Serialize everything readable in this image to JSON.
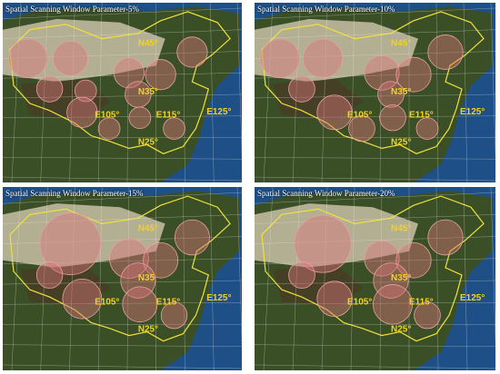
{
  "colors": {
    "sea": "#1e4f86",
    "sea_light": "#2d6aa5",
    "land_desert": "#c9bfa7",
    "land_green": "#3a4f26",
    "land_dark": "#4a3a25",
    "boundary": "#f0e23a",
    "circle_fill": "#d8747a",
    "circle_stroke": "#e8a0a5",
    "label": "#f3d21c",
    "grid": "#e8e8e8"
  },
  "panels": [
    {
      "title": "Spatial Scanning  Window Parameter-5%",
      "labels": {
        "n45": "N45°",
        "n35": "N35°",
        "n25": "N25°",
        "e105": "E105°",
        "e115": "E115°",
        "e125": "E125°"
      },
      "clusters": [
        {
          "region": "xinjiang-west",
          "r": 0.9
        },
        {
          "region": "xinjiang-central",
          "r": 0.8
        },
        {
          "region": "tibet-north",
          "r": 0.6
        },
        {
          "region": "qinghai",
          "r": 0.5
        },
        {
          "region": "inner-mongolia",
          "r": 0.7
        },
        {
          "region": "northeast",
          "r": 0.7
        },
        {
          "region": "gansu",
          "r": 0.7
        },
        {
          "region": "north-china",
          "r": 0.6
        },
        {
          "region": "sichuan",
          "r": 0.7
        },
        {
          "region": "central",
          "r": 0.5
        },
        {
          "region": "yunnan",
          "r": 0.5
        },
        {
          "region": "south",
          "r": 0.5
        }
      ]
    },
    {
      "title": "Spatial Scanning  Window Parameter-10%",
      "labels": {
        "n45": "N45°",
        "n35": "N35°",
        "n25": "N25°",
        "e105": "E105°",
        "e115": "E115°",
        "e125": "E125°"
      },
      "clusters": [
        {
          "region": "xinjiang-west",
          "r": 0.9
        },
        {
          "region": "xinjiang-central",
          "r": 0.9
        },
        {
          "region": "tibet-north",
          "r": 0.6
        },
        {
          "region": "inner-mongolia",
          "r": 0.8
        },
        {
          "region": "northeast",
          "r": 0.8
        },
        {
          "region": "gansu",
          "r": 0.8
        },
        {
          "region": "north-china",
          "r": 0.6
        },
        {
          "region": "sichuan",
          "r": 0.8
        },
        {
          "region": "central",
          "r": 0.6
        },
        {
          "region": "yunnan",
          "r": 0.6
        },
        {
          "region": "south",
          "r": 0.5
        }
      ]
    },
    {
      "title": "Spatial Scanning  Window Parameter-15%",
      "labels": {
        "n45": "N45°",
        "n35": "N35",
        "n25": "N25°",
        "e105": "E105°",
        "e115": "E115°",
        "e125": "E125°"
      },
      "clusters": [
        {
          "region": "xinjiang-central",
          "r": 1.4
        },
        {
          "region": "tibet-north",
          "r": 0.6
        },
        {
          "region": "inner-mongolia",
          "r": 0.9
        },
        {
          "region": "northeast",
          "r": 0.8
        },
        {
          "region": "gansu",
          "r": 0.8
        },
        {
          "region": "north-china",
          "r": 0.8
        },
        {
          "region": "sichuan",
          "r": 0.9
        },
        {
          "region": "central",
          "r": 0.8
        },
        {
          "region": "south",
          "r": 0.6
        }
      ]
    },
    {
      "title": "Spatial Scanning  Window Parameter-20%",
      "labels": {
        "n45": "N45°",
        "n35": "N35°",
        "n25": "N25°",
        "e105": "E105°",
        "e115": "E115°",
        "e125": "E125°"
      },
      "clusters": [
        {
          "region": "xinjiang-central",
          "r": 1.3
        },
        {
          "region": "tibet-north",
          "r": 0.6
        },
        {
          "region": "inner-mongolia",
          "r": 0.8
        },
        {
          "region": "northeast",
          "r": 0.8
        },
        {
          "region": "gansu",
          "r": 0.8
        },
        {
          "region": "north-china",
          "r": 0.8
        },
        {
          "region": "sichuan",
          "r": 0.8
        },
        {
          "region": "central",
          "r": 0.9
        },
        {
          "region": "south",
          "r": 0.6
        }
      ]
    }
  ]
}
